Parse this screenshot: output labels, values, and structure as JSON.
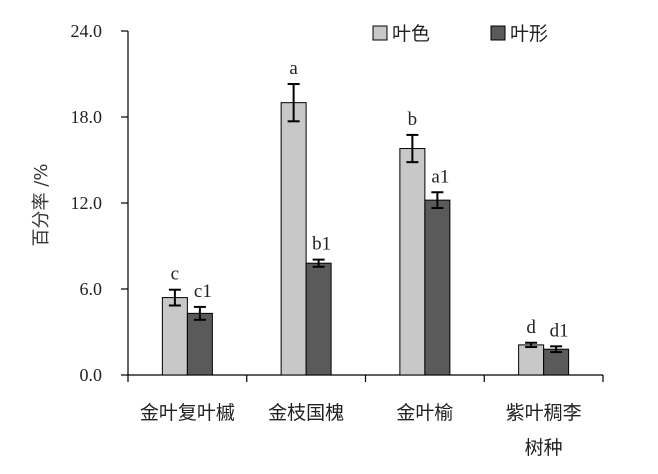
{
  "chart_data": {
    "type": "bar",
    "ylabel": "百分率 /%",
    "ylim": [
      0,
      24
    ],
    "yticks": [
      "0.0",
      "6.0",
      "12.0",
      "18.0",
      "24.0"
    ],
    "categories": [
      [
        "金叶复叶槭"
      ],
      [
        "金枝国槐"
      ],
      [
        "金叶榆"
      ],
      [
        "紫叶稠李",
        "树种"
      ]
    ],
    "series": [
      {
        "name": "叶色",
        "color": "#c8c8c8",
        "values": [
          5.4,
          19.0,
          15.8,
          2.1
        ],
        "errors": [
          0.55,
          1.3,
          0.95,
          0.15
        ],
        "labels": [
          "c",
          "a",
          "b",
          "d"
        ]
      },
      {
        "name": "叶形",
        "color": "#5a5a5a",
        "values": [
          4.3,
          7.8,
          12.2,
          1.8
        ],
        "errors": [
          0.45,
          0.25,
          0.55,
          0.2
        ],
        "labels": [
          "c1",
          "b1",
          "a1",
          "d1"
        ]
      }
    ],
    "legend_position": "top-right"
  }
}
